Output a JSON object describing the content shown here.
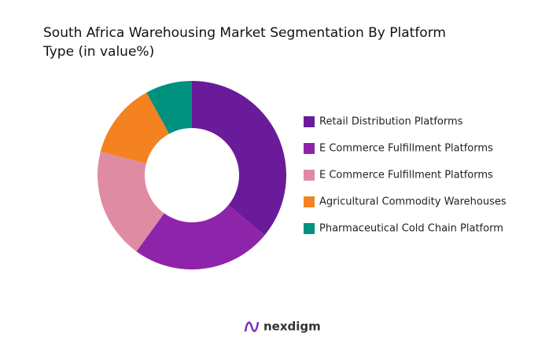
{
  "chart_data": {
    "type": "donut",
    "title": [
      "South Africa Warehousing Market Segmentation By Platform",
      "Type (in value%)"
    ],
    "categories": [
      "Retail Distribution Platforms",
      "E Commerce Fulfillment Platforms",
      "E Commerce Fulfillment Platforms",
      "Agricultural Commodity Warehouses",
      "Pharmaceutical Cold Chain Platform"
    ],
    "values": [
      36,
      24,
      19,
      13,
      8
    ],
    "colors": [
      "#6a1b9a",
      "#8e24aa",
      "#e08ba4",
      "#f58220",
      "#00917f"
    ],
    "legend": "right"
  },
  "brand": "nexdigm"
}
